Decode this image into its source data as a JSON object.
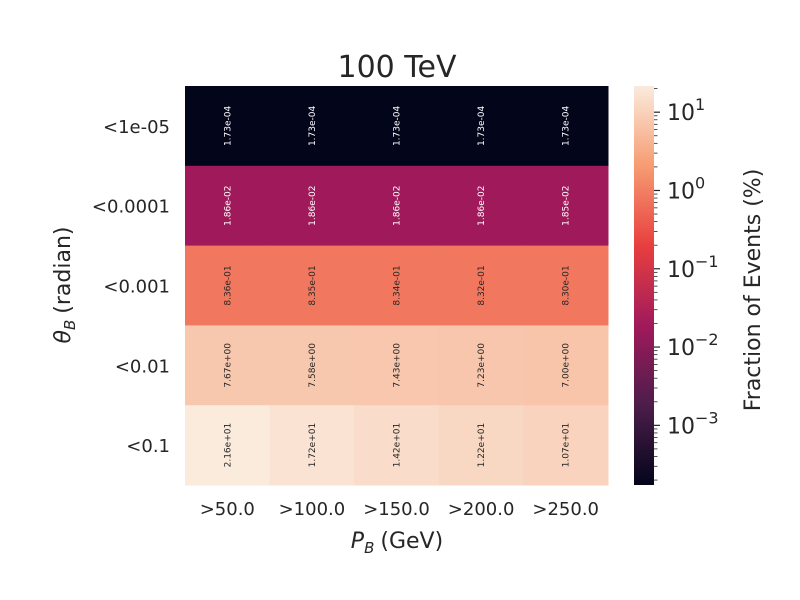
{
  "chart_data": {
    "type": "heatmap",
    "title": "100 TeV",
    "xlabel_main": "P",
    "xlabel_sub": "B",
    "xlabel_unit": "(GeV)",
    "ylabel_main": "θ",
    "ylabel_sub": "B",
    "ylabel_unit": "(radian)",
    "x_categories": [
      ">50.0",
      ">100.0",
      ">150.0",
      ">200.0",
      ">250.0"
    ],
    "y_categories": [
      "<1e-05",
      "<0.0001",
      "<0.001",
      "<0.01",
      "<0.1"
    ],
    "values": [
      [
        0.000173,
        0.000173,
        0.000173,
        0.000173,
        0.000173
      ],
      [
        0.0186,
        0.0186,
        0.0186,
        0.0186,
        0.0185
      ],
      [
        0.836,
        0.835,
        0.834,
        0.832,
        0.83
      ],
      [
        7.67,
        7.58,
        7.43,
        7.23,
        7.0
      ],
      [
        21.6,
        17.2,
        14.2,
        12.2,
        10.7
      ]
    ],
    "cell_labels": [
      [
        "1.73e-04",
        "1.73e-04",
        "1.73e-04",
        "1.73e-04",
        "1.73e-04"
      ],
      [
        "1.86e-02",
        "1.86e-02",
        "1.86e-02",
        "1.86e-02",
        "1.85e-02"
      ],
      [
        "8.36e-01",
        "8.35e-01",
        "8.34e-01",
        "8.32e-01",
        "8.30e-01"
      ],
      [
        "7.67e+00",
        "7.58e+00",
        "7.43e+00",
        "7.23e+00",
        "7.00e+00"
      ],
      [
        "2.16e+01",
        "1.72e+01",
        "1.42e+01",
        "1.22e+01",
        "1.07e+01"
      ]
    ],
    "colorbar": {
      "label": "Fraction of Events (%)",
      "scale": "log",
      "vmin": 0.000173,
      "vmax": 21.6,
      "tick_values": [
        10,
        1,
        0.1,
        0.01,
        0.001
      ],
      "tick_labels": [
        {
          "base": "10",
          "exp": "1"
        },
        {
          "base": "10",
          "exp": "0"
        },
        {
          "base": "10",
          "exp": "−1"
        },
        {
          "base": "10",
          "exp": "−2"
        },
        {
          "base": "10",
          "exp": "−3"
        }
      ]
    },
    "colormap": "rocket",
    "colormap_stops": [
      "#03051a",
      "#4c1d4b",
      "#a11a5b",
      "#e83f3f",
      "#f69c73",
      "#faebdd"
    ]
  }
}
